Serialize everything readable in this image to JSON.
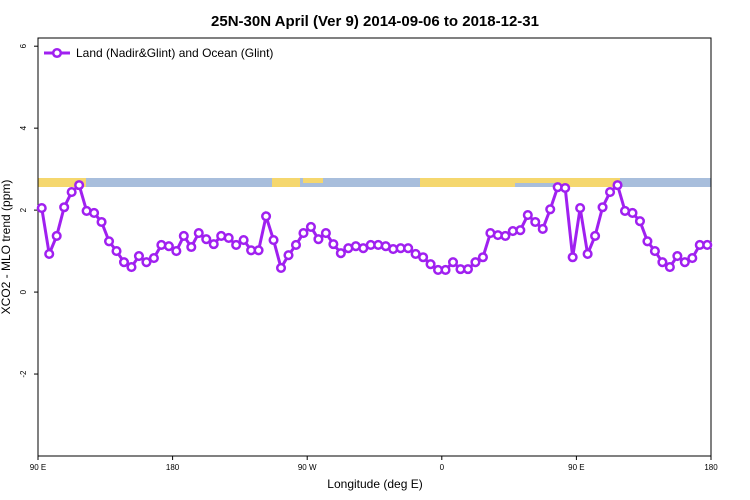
{
  "chart_data": {
    "type": "line",
    "title": "25N-30N April (Ver 9)   2014-09-06 to 2018-12-31",
    "x_label": "Longitude (deg E)",
    "y_label": "XCO2 - MLO trend (ppm)",
    "xlim": [
      90,
      540
    ],
    "ylim": [
      -4,
      6.2
    ],
    "xticks": [
      {
        "value": 90,
        "label": "90 E"
      },
      180,
      {
        "value": 270,
        "label": "90 W"
      },
      {
        "value": 360,
        "label": "0"
      },
      {
        "value": 450,
        "label": "90 E"
      },
      {
        "value": 540,
        "label": "180"
      }
    ],
    "yticks": [
      -2,
      0,
      2,
      4,
      6
    ],
    "legend": "top-left",
    "x": [
      92.5,
      97.5,
      102.5,
      107.5,
      112.5,
      117.5,
      122.5,
      127.5,
      132.5,
      137.5,
      142.5,
      147.5,
      152.5,
      157.5,
      162.5,
      167.5,
      172.5,
      177.5,
      182.5,
      187.5,
      192.5,
      197.5,
      202.5,
      207.5,
      212.5,
      217.5,
      222.5,
      227.5,
      232.5,
      237.5,
      242.5,
      247.5,
      252.5,
      257.5,
      262.5,
      267.5,
      272.5,
      277.5,
      282.5,
      287.5,
      292.5,
      297.5,
      302.5,
      307.5,
      312.5,
      317.5,
      322.5,
      327.5,
      332.5,
      337.5,
      342.5,
      347.5,
      352.5,
      357.5,
      362.5,
      367.5,
      372.5,
      377.5,
      382.5,
      387.5,
      392.5,
      397.5,
      402.5,
      407.5,
      412.5,
      417.5,
      422.5,
      427.5,
      432.5,
      437.5,
      442.5,
      447.5,
      452.5,
      457.5,
      462.5,
      467.5,
      472.5,
      477.5,
      482.5,
      487.5,
      492.5,
      497.5,
      502.5,
      507.5,
      512.5,
      517.5,
      522.5,
      527.5,
      532.5,
      537.5
    ],
    "series": [
      {
        "name": "Land (Nadir&Glint) and Ocean (Glint)",
        "color": "#a020f0",
        "values": [
          2.05,
          0.93,
          1.37,
          2.07,
          2.44,
          2.61,
          1.98,
          1.93,
          1.71,
          1.24,
          1.0,
          0.73,
          0.61,
          0.88,
          0.73,
          0.83,
          1.15,
          1.12,
          1.0,
          1.37,
          1.1,
          1.44,
          1.29,
          1.17,
          1.37,
          1.32,
          1.15,
          1.27,
          1.02,
          1.02,
          1.85,
          1.27,
          0.59,
          0.9,
          1.15,
          1.44,
          1.59,
          1.29,
          1.44,
          1.17,
          0.95,
          1.07,
          1.12,
          1.07,
          1.15,
          1.15,
          1.12,
          1.05,
          1.07,
          1.07,
          0.93,
          0.85,
          0.68,
          0.54,
          0.54,
          0.73,
          0.56,
          0.56,
          0.73,
          0.85,
          1.44,
          1.39,
          1.37,
          1.49,
          1.51,
          1.88,
          1.71,
          1.54,
          2.02,
          2.56,
          2.54,
          0.85,
          2.05,
          0.93,
          1.37,
          2.07,
          2.44,
          2.61,
          1.98,
          1.93,
          1.73,
          1.24,
          1.0,
          0.73,
          0.61,
          0.88,
          0.73,
          0.83,
          1.15,
          1.15
        ]
      }
    ]
  }
}
